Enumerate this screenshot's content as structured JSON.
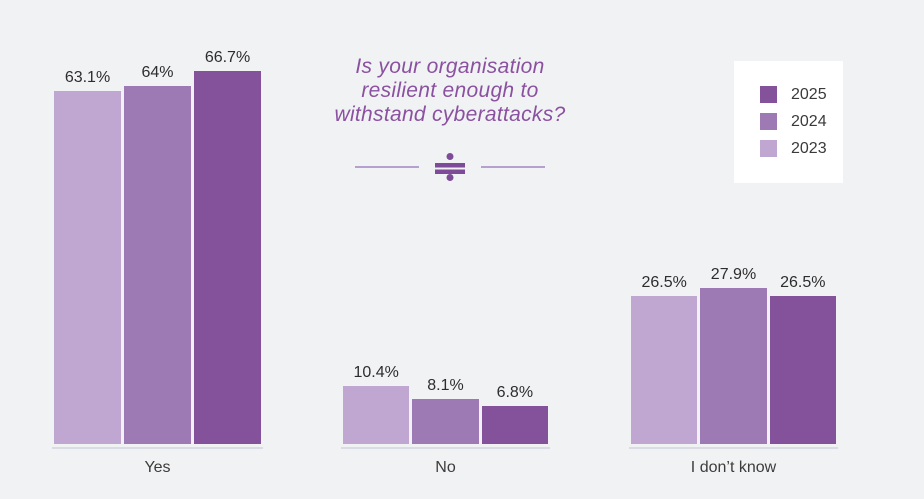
{
  "title": {
    "lines": [
      "Is your organisation",
      "resilient enough to",
      "withstand cyberattacks?"
    ],
    "color": "#8a51a0"
  },
  "legend": {
    "position": "top-right",
    "items": [
      {
        "label": "2025",
        "color": "#84529b"
      },
      {
        "label": "2024",
        "color": "#9d7ab3"
      },
      {
        "label": "2023",
        "color": "#bfa7d1"
      }
    ]
  },
  "chart_data": {
    "type": "bar",
    "title": "Is your organisation resilient enough to withstand cyberattacks?",
    "categories": [
      "Yes",
      "No",
      "I don’t know"
    ],
    "series": [
      {
        "name": "2023",
        "color": "#bfa7d1",
        "values": [
          63.1,
          10.4,
          26.5
        ],
        "labels": [
          "63.1%",
          "10.4%",
          "26.5%"
        ]
      },
      {
        "name": "2024",
        "color": "#9d7ab3",
        "values": [
          64,
          8.1,
          27.9
        ],
        "labels": [
          "64%",
          "8.1%",
          "27.9%"
        ]
      },
      {
        "name": "2025",
        "color": "#84529b",
        "values": [
          66.7,
          6.8,
          26.5
        ],
        "labels": [
          "66.7%",
          "6.8%",
          "26.5%"
        ]
      }
    ],
    "unit": "%",
    "ylim": [
      0,
      100
    ],
    "grid": false,
    "legend_position": "top-right",
    "value_labels_shown": true,
    "axis_shown": false
  },
  "colors": {
    "background": "#f1f2f4",
    "baseline": "#d9dce2",
    "divider_line": "#b79fce",
    "ornament": "#7d4b98"
  }
}
